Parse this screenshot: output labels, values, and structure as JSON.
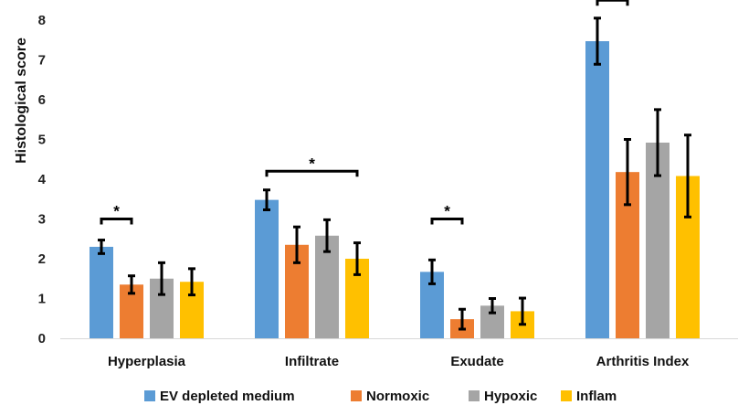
{
  "chart_data": {
    "type": "bar",
    "title": "",
    "xlabel": "",
    "ylabel": "Histological  score",
    "ylim": [
      0,
      8
    ],
    "yticks": [
      0,
      1,
      2,
      3,
      4,
      5,
      6,
      7,
      8
    ],
    "grid": false,
    "legend_position": "bottom",
    "categories": [
      "Hyperplasia",
      "Infiltrate",
      "Exudate",
      "Arthritis Index"
    ],
    "series": [
      {
        "name": "EV depleted medium",
        "color": "#5b9bd5",
        "values": [
          2.3,
          3.48,
          1.67,
          7.47
        ],
        "errors": [
          0.17,
          0.25,
          0.3,
          0.58
        ]
      },
      {
        "name": "Normoxic",
        "color": "#ed7d31",
        "values": [
          1.35,
          2.35,
          0.48,
          4.18
        ],
        "errors": [
          0.22,
          0.45,
          0.25,
          0.82
        ]
      },
      {
        "name": "Hypoxic",
        "color": "#a5a5a5",
        "values": [
          1.5,
          2.58,
          0.82,
          4.92
        ],
        "errors": [
          0.4,
          0.4,
          0.18,
          0.83
        ]
      },
      {
        "name": "Inflam",
        "color": "#ffc000",
        "values": [
          1.42,
          2.0,
          0.68,
          4.08
        ],
        "errors": [
          0.33,
          0.4,
          0.33,
          1.03
        ]
      }
    ],
    "significance": [
      {
        "category": "Hyperplasia",
        "from_series": 0,
        "to_series": 1,
        "y": 3.0,
        "label": "*"
      },
      {
        "category": "Infiltrate",
        "from_series": 0,
        "to_series": 3,
        "y": 4.2,
        "label": "*"
      },
      {
        "category": "Exudate",
        "from_series": 0,
        "to_series": 1,
        "y": 3.0,
        "label": "*"
      },
      {
        "category": "Arthritis Index",
        "from_series": 0,
        "to_series": 1,
        "y": 8.5,
        "label": ""
      }
    ]
  }
}
